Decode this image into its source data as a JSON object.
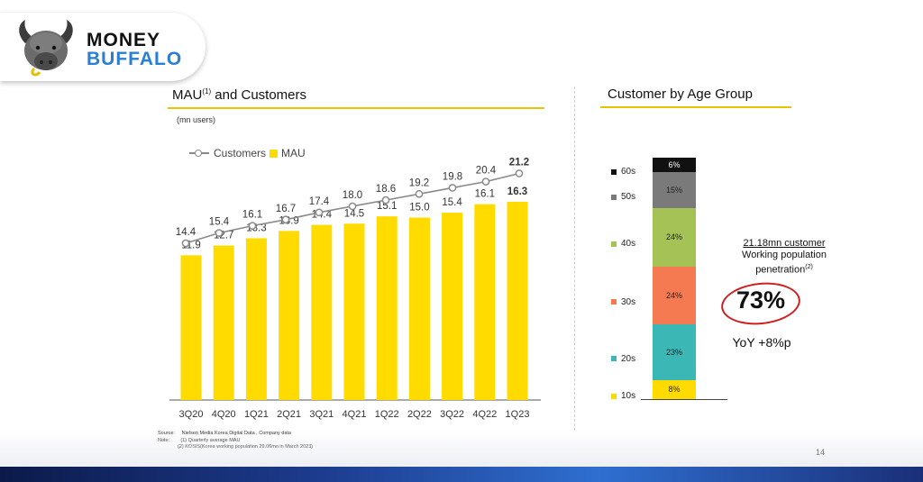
{
  "brand": {
    "line1": "MONEY",
    "line2": "BUFFALO",
    "colors": {
      "line1": "#111111",
      "line2": "#2a7fd3",
      "badge_bg": "#ffffff"
    },
    "icon": "buffalo-head-icon"
  },
  "left_panel": {
    "title": "MAU",
    "title_sup": "(1)",
    "title_rest": " and Customers",
    "unit_note": "(mn users)"
  },
  "right_panel": {
    "title": "Customer by Age Group",
    "penetration_line1": "21.18mn customer",
    "penetration_line2": "Working population",
    "penetration_line3": "penetration",
    "penetration_sup": "(2)",
    "penetration_value": "73%",
    "yoy": "YoY +8%p"
  },
  "chart_data": [
    {
      "type": "bar",
      "title": "MAU(1) and Customers",
      "subtitle": "(mn users)",
      "categories": [
        "3Q20",
        "4Q20",
        "1Q21",
        "2Q21",
        "3Q21",
        "4Q21",
        "1Q22",
        "2Q22",
        "3Q22",
        "4Q22",
        "1Q23"
      ],
      "series": [
        {
          "name": "Customers",
          "type": "line",
          "color": "#8a8a8a",
          "values": [
            14.4,
            15.4,
            16.1,
            16.7,
            17.4,
            18.0,
            18.6,
            19.2,
            19.8,
            20.4,
            21.2
          ]
        },
        {
          "name": "MAU",
          "type": "bar",
          "color": "#ffdb00",
          "values": [
            11.9,
            12.7,
            13.3,
            13.9,
            14.4,
            14.5,
            15.1,
            15.0,
            15.4,
            16.1,
            16.3
          ]
        }
      ],
      "legend": "top-left",
      "grid": false,
      "ylim": [
        0,
        23
      ]
    },
    {
      "type": "bar",
      "title": "Customer by Age Group",
      "stacked": true,
      "series": [
        {
          "name": "10s",
          "value": 8,
          "label": "8%",
          "color": "#ffdb00"
        },
        {
          "name": "20s",
          "value": 23,
          "label": "23%",
          "color": "#3bb7b5"
        },
        {
          "name": "30s",
          "value": 24,
          "label": "24%",
          "color": "#f57a51"
        },
        {
          "name": "40s",
          "value": 24,
          "label": "24%",
          "color": "#a5c257"
        },
        {
          "name": "50s",
          "value": 15,
          "label": "15%",
          "color": "#7a7a7a"
        },
        {
          "name": "60s",
          "value": 6,
          "label": "6%",
          "color": "#111111"
        }
      ],
      "legend": "left"
    }
  ],
  "footnotes": {
    "source_label": "Source:",
    "source_text": "Nielsen  Media  Korea  Digital  Data , Company  data",
    "note_label": "Note:",
    "note1": "(1) Quarterly  average MAU",
    "note2": "(2) KOSIS(Korea  working  population  29.06mn  in March 2023)"
  },
  "page_number": "14",
  "colors": {
    "title_rule": "#e9c200",
    "footer_left": "#0b1a4a",
    "footer_right": "#2f6fd0",
    "ring": "#cf2020"
  }
}
